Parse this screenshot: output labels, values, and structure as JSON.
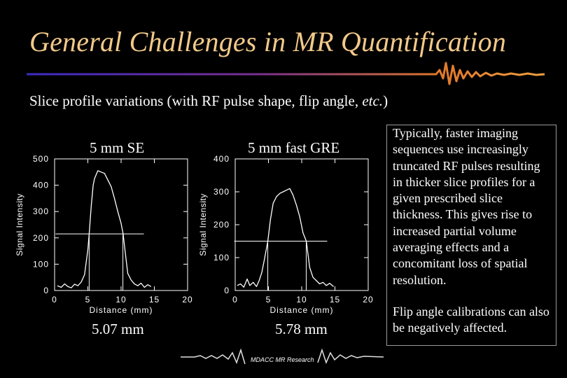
{
  "slide": {
    "title": "General Challenges in MR Quantification",
    "subtitle_prefix": "Slice profile variations (with RF pulse shape, flip angle, ",
    "subtitle_italic": "etc.",
    "subtitle_suffix": ")",
    "footer": "MDACC MR Research"
  },
  "textbox": {
    "paragraph1": "Typically, faster imaging sequences use increasingly truncated RF pulses resulting in thicker slice profiles for a given prescribed slice thickness. This gives rise to increased partial volume averaging effects and a concomitant loss of spatial resolution.",
    "paragraph2": "Flip angle calibrations can also be negatively affected."
  },
  "chart_data": [
    {
      "type": "line",
      "title": "5 mm SE",
      "xlabel": "Distance (mm)",
      "ylabel": "Signal Intensity",
      "xlim": [
        0,
        20
      ],
      "ylim": [
        0,
        500
      ],
      "xticks": [
        "0",
        "5",
        "10",
        "15",
        "20"
      ],
      "yticks": [
        "0",
        "100",
        "200",
        "300",
        "400",
        "500"
      ],
      "measurement": "5.07 mm",
      "half_max": 215,
      "fwhm_markers": [
        5.2,
        10.27
      ],
      "x": [
        0.4,
        1,
        1.5,
        2,
        2.5,
        3,
        3.5,
        4,
        4.5,
        5,
        5.2,
        5.5,
        5.8,
        6,
        6.5,
        7,
        7.5,
        8,
        8.5,
        9,
        9.5,
        10,
        10.3,
        10.6,
        11,
        11.5,
        12,
        12.5,
        13,
        13.5,
        14,
        14.5
      ],
      "values": [
        18,
        12,
        25,
        15,
        10,
        24,
        18,
        32,
        60,
        155,
        215,
        320,
        400,
        425,
        455,
        450,
        445,
        420,
        395,
        350,
        300,
        255,
        215,
        150,
        65,
        40,
        25,
        18,
        28,
        12,
        22,
        15
      ]
    },
    {
      "type": "line",
      "title": "5 mm fast GRE",
      "xlabel": "Distance (mm)",
      "ylabel": "Signal Intensity",
      "xlim": [
        0,
        20
      ],
      "ylim": [
        0,
        400
      ],
      "xticks": [
        "0",
        "5",
        "10",
        "15",
        "20"
      ],
      "yticks": [
        "0",
        "100",
        "200",
        "300",
        "400"
      ],
      "measurement": "5.78 mm",
      "half_max": 150,
      "fwhm_markers": [
        4.9,
        10.68
      ],
      "x": [
        0.3,
        0.8,
        1.3,
        1.8,
        2.2,
        2.7,
        3.2,
        3.6,
        4,
        4.4,
        4.9,
        5.3,
        5.7,
        6.2,
        6.7,
        7.2,
        7.7,
        8.2,
        8.7,
        9.2,
        9.7,
        10.2,
        10.7,
        11.2,
        11.7,
        12.2,
        12.7,
        13.2,
        13.7,
        14.2,
        14.8
      ],
      "values": [
        15,
        20,
        10,
        35,
        15,
        25,
        12,
        30,
        55,
        95,
        150,
        215,
        265,
        285,
        295,
        300,
        305,
        310,
        290,
        260,
        225,
        175,
        150,
        70,
        40,
        30,
        20,
        25,
        15,
        22,
        12
      ]
    }
  ]
}
